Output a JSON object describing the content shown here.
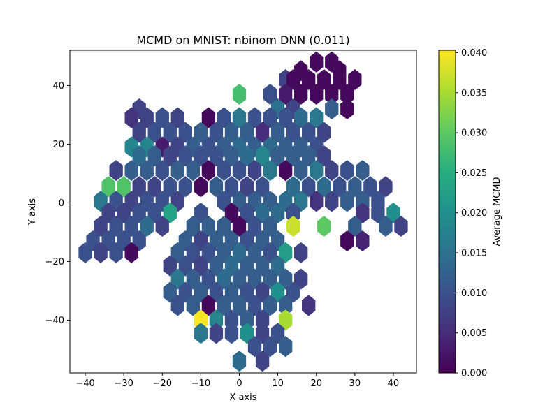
{
  "chart_data": {
    "type": "hexbin",
    "title": "MCMD on MNIST: nbinom DNN (0.011)",
    "xlabel": "X axis",
    "ylabel": "Y axis",
    "xlim": [
      -44,
      46
    ],
    "ylim": [
      -58,
      52
    ],
    "xticks": [
      -40,
      -30,
      -20,
      -10,
      0,
      10,
      20,
      30,
      40
    ],
    "yticks": [
      -40,
      -20,
      0,
      20,
      40
    ],
    "hex_spacing_x": 4.05,
    "hex_spacing_y": 5.35,
    "grid": false,
    "colormap": "viridis",
    "colorbar": {
      "label": "Average MCMD",
      "min": 0.0,
      "max": 0.0403,
      "ticks": [
        0.0,
        0.005,
        0.01,
        0.015,
        0.02,
        0.025,
        0.03,
        0.035,
        0.04
      ],
      "tick_labels": [
        "0.000",
        "0.005",
        "0.010",
        "0.015",
        "0.020",
        "0.025",
        "0.030",
        "0.035",
        "0.040"
      ]
    },
    "points": [
      {
        "x": 12,
        "y": 42,
        "v": 0.008
      },
      {
        "x": 16,
        "y": 45,
        "v": 0.001
      },
      {
        "x": 20,
        "y": 48,
        "v": 0.001
      },
      {
        "x": 24,
        "y": 48,
        "v": 0.001
      },
      {
        "x": 26,
        "y": 45,
        "v": 0.001
      },
      {
        "x": 30,
        "y": 42,
        "v": 0.001
      },
      {
        "x": 14,
        "y": 42,
        "v": 0.001
      },
      {
        "x": 18,
        "y": 42,
        "v": 0.001
      },
      {
        "x": 22,
        "y": 42,
        "v": 0.001
      },
      {
        "x": 26,
        "y": 42,
        "v": 0.001
      },
      {
        "x": 0,
        "y": 37,
        "v": 0.028
      },
      {
        "x": 8,
        "y": 37,
        "v": 0.01
      },
      {
        "x": 12,
        "y": 37,
        "v": 0.003
      },
      {
        "x": 16,
        "y": 37,
        "v": 0.001
      },
      {
        "x": 20,
        "y": 37,
        "v": 0.001
      },
      {
        "x": 24,
        "y": 37,
        "v": 0.001
      },
      {
        "x": 28,
        "y": 37,
        "v": 0.001
      },
      {
        "x": 10,
        "y": 32,
        "v": 0.015
      },
      {
        "x": 14,
        "y": 32,
        "v": 0.008
      },
      {
        "x": 24,
        "y": 32,
        "v": 0.012
      },
      {
        "x": 28,
        "y": 32,
        "v": 0.001
      },
      {
        "x": -26,
        "y": 32,
        "v": 0.008
      },
      {
        "x": -28,
        "y": 29,
        "v": 0.006
      },
      {
        "x": -24,
        "y": 29,
        "v": 0.008
      },
      {
        "x": -20,
        "y": 29,
        "v": 0.01
      },
      {
        "x": -16,
        "y": 29,
        "v": 0.008
      },
      {
        "x": -8,
        "y": 29,
        "v": 0.001
      },
      {
        "x": -4,
        "y": 29,
        "v": 0.01
      },
      {
        "x": 0,
        "y": 29,
        "v": 0.016
      },
      {
        "x": 4,
        "y": 29,
        "v": 0.01
      },
      {
        "x": 8,
        "y": 29,
        "v": 0.01
      },
      {
        "x": 12,
        "y": 29,
        "v": 0.01
      },
      {
        "x": 16,
        "y": 29,
        "v": 0.014
      },
      {
        "x": 20,
        "y": 29,
        "v": 0.016
      },
      {
        "x": -26,
        "y": 24,
        "v": 0.008
      },
      {
        "x": -22,
        "y": 24,
        "v": 0.01
      },
      {
        "x": -18,
        "y": 24,
        "v": 0.01
      },
      {
        "x": -14,
        "y": 24,
        "v": 0.01
      },
      {
        "x": -10,
        "y": 24,
        "v": 0.012
      },
      {
        "x": -6,
        "y": 24,
        "v": 0.01
      },
      {
        "x": -2,
        "y": 24,
        "v": 0.012
      },
      {
        "x": 2,
        "y": 24,
        "v": 0.012
      },
      {
        "x": 6,
        "y": 24,
        "v": 0.005
      },
      {
        "x": 10,
        "y": 24,
        "v": 0.012
      },
      {
        "x": 14,
        "y": 24,
        "v": 0.01
      },
      {
        "x": 18,
        "y": 24,
        "v": 0.01
      },
      {
        "x": 22,
        "y": 24,
        "v": 0.008
      },
      {
        "x": -28,
        "y": 19,
        "v": 0.018
      },
      {
        "x": -24,
        "y": 19,
        "v": 0.018
      },
      {
        "x": -20,
        "y": 19,
        "v": 0.003
      },
      {
        "x": -16,
        "y": 19,
        "v": 0.008
      },
      {
        "x": -12,
        "y": 19,
        "v": 0.012
      },
      {
        "x": -8,
        "y": 19,
        "v": 0.01
      },
      {
        "x": -4,
        "y": 19,
        "v": 0.012
      },
      {
        "x": 0,
        "y": 19,
        "v": 0.014
      },
      {
        "x": 4,
        "y": 19,
        "v": 0.012
      },
      {
        "x": 8,
        "y": 19,
        "v": 0.014
      },
      {
        "x": 12,
        "y": 19,
        "v": 0.012
      },
      {
        "x": 16,
        "y": 19,
        "v": 0.012
      },
      {
        "x": 20,
        "y": 19,
        "v": 0.01
      },
      {
        "x": -26,
        "y": 16,
        "v": 0.014
      },
      {
        "x": -22,
        "y": 16,
        "v": 0.012
      },
      {
        "x": -18,
        "y": 16,
        "v": 0.008
      },
      {
        "x": -14,
        "y": 16,
        "v": 0.01
      },
      {
        "x": -10,
        "y": 16,
        "v": 0.01
      },
      {
        "x": -6,
        "y": 16,
        "v": 0.01
      },
      {
        "x": -2,
        "y": 16,
        "v": 0.012
      },
      {
        "x": 2,
        "y": 16,
        "v": 0.014
      },
      {
        "x": 6,
        "y": 16,
        "v": 0.018
      },
      {
        "x": 10,
        "y": 16,
        "v": 0.012
      },
      {
        "x": 14,
        "y": 16,
        "v": 0.012
      },
      {
        "x": 18,
        "y": 16,
        "v": 0.012
      },
      {
        "x": 22,
        "y": 16,
        "v": 0.008
      },
      {
        "x": -32,
        "y": 11,
        "v": 0.008
      },
      {
        "x": -28,
        "y": 11,
        "v": 0.012
      },
      {
        "x": -24,
        "y": 11,
        "v": 0.012
      },
      {
        "x": -20,
        "y": 11,
        "v": 0.01
      },
      {
        "x": -16,
        "y": 11,
        "v": 0.012
      },
      {
        "x": -12,
        "y": 11,
        "v": 0.012
      },
      {
        "x": -8,
        "y": 11,
        "v": 0.001
      },
      {
        "x": -4,
        "y": 11,
        "v": 0.01
      },
      {
        "x": 0,
        "y": 11,
        "v": 0.01
      },
      {
        "x": 4,
        "y": 11,
        "v": 0.008
      },
      {
        "x": 8,
        "y": 11,
        "v": 0.016
      },
      {
        "x": 12,
        "y": 11,
        "v": 0.001
      },
      {
        "x": 16,
        "y": 11,
        "v": 0.012
      },
      {
        "x": 20,
        "y": 11,
        "v": 0.016
      },
      {
        "x": 24,
        "y": 11,
        "v": 0.008
      },
      {
        "x": 28,
        "y": 11,
        "v": 0.01
      },
      {
        "x": 32,
        "y": 11,
        "v": 0.012
      },
      {
        "x": -34,
        "y": 5.5,
        "v": 0.029
      },
      {
        "x": -30,
        "y": 5.5,
        "v": 0.029
      },
      {
        "x": -26,
        "y": 5.5,
        "v": 0.008
      },
      {
        "x": -22,
        "y": 5.5,
        "v": 0.008
      },
      {
        "x": -18,
        "y": 5.5,
        "v": 0.01
      },
      {
        "x": -14,
        "y": 5.5,
        "v": 0.01
      },
      {
        "x": -10,
        "y": 5.5,
        "v": 0.001
      },
      {
        "x": -6,
        "y": 5.5,
        "v": 0.012
      },
      {
        "x": -2,
        "y": 5.5,
        "v": 0.01
      },
      {
        "x": 2,
        "y": 5.5,
        "v": 0.008
      },
      {
        "x": 6,
        "y": 5.5,
        "v": 0.01
      },
      {
        "x": 14,
        "y": 5.5,
        "v": 0.014
      },
      {
        "x": 18,
        "y": 5.5,
        "v": 0.01
      },
      {
        "x": 22,
        "y": 5.5,
        "v": 0.014
      },
      {
        "x": 26,
        "y": 5.5,
        "v": 0.01
      },
      {
        "x": 30,
        "y": 5.5,
        "v": 0.012
      },
      {
        "x": 34,
        "y": 5.5,
        "v": 0.01
      },
      {
        "x": 38,
        "y": 5.5,
        "v": 0.008
      },
      {
        "x": -36,
        "y": 0.5,
        "v": 0.016
      },
      {
        "x": -32,
        "y": 0.5,
        "v": 0.01
      },
      {
        "x": -28,
        "y": 0.5,
        "v": 0.008
      },
      {
        "x": -24,
        "y": 0.5,
        "v": 0.01
      },
      {
        "x": -20,
        "y": 0.5,
        "v": 0.01
      },
      {
        "x": -16,
        "y": 0.5,
        "v": 0.008
      },
      {
        "x": -4,
        "y": 0.5,
        "v": 0.01
      },
      {
        "x": 0,
        "y": 0.5,
        "v": 0.012
      },
      {
        "x": 4,
        "y": 0.5,
        "v": 0.012
      },
      {
        "x": 8,
        "y": 0.5,
        "v": 0.012
      },
      {
        "x": 12,
        "y": 0.5,
        "v": 0.014
      },
      {
        "x": 16,
        "y": 0.5,
        "v": 0.016
      },
      {
        "x": 20,
        "y": 0.5,
        "v": 0.006
      },
      {
        "x": 24,
        "y": 0.5,
        "v": 0.008
      },
      {
        "x": 28,
        "y": 0.5,
        "v": 0.012
      },
      {
        "x": 32,
        "y": 0.5,
        "v": 0.012
      },
      {
        "x": 36,
        "y": 0.5,
        "v": 0.01
      },
      {
        "x": -34,
        "y": -3.5,
        "v": 0.008
      },
      {
        "x": -30,
        "y": -3.5,
        "v": 0.008
      },
      {
        "x": -26,
        "y": -3.5,
        "v": 0.01
      },
      {
        "x": -22,
        "y": -3.5,
        "v": 0.01
      },
      {
        "x": -18,
        "y": -3.5,
        "v": 0.023
      },
      {
        "x": -10,
        "y": -3.5,
        "v": 0.01
      },
      {
        "x": -2,
        "y": -3.5,
        "v": 0.001
      },
      {
        "x": 2,
        "y": -3.5,
        "v": 0.01
      },
      {
        "x": 6,
        "y": -3.5,
        "v": 0.014
      },
      {
        "x": 10,
        "y": -3.5,
        "v": 0.014
      },
      {
        "x": 14,
        "y": -3.5,
        "v": 0.01
      },
      {
        "x": 32,
        "y": -3.5,
        "v": 0.006
      },
      {
        "x": 36,
        "y": -3.5,
        "v": 0.01
      },
      {
        "x": 40,
        "y": -3.5,
        "v": 0.02
      },
      {
        "x": -36,
        "y": -8,
        "v": 0.008
      },
      {
        "x": -32,
        "y": -8,
        "v": 0.01
      },
      {
        "x": -28,
        "y": -8,
        "v": 0.01
      },
      {
        "x": -24,
        "y": -8,
        "v": 0.014
      },
      {
        "x": -20,
        "y": -8,
        "v": 0.008
      },
      {
        "x": -12,
        "y": -8,
        "v": 0.012
      },
      {
        "x": -8,
        "y": -8,
        "v": 0.012
      },
      {
        "x": -4,
        "y": -8,
        "v": 0.012
      },
      {
        "x": 0,
        "y": -8,
        "v": 0.001
      },
      {
        "x": 4,
        "y": -8,
        "v": 0.01
      },
      {
        "x": 8,
        "y": -8,
        "v": 0.012
      },
      {
        "x": 14,
        "y": -8,
        "v": 0.037
      },
      {
        "x": 22,
        "y": -8,
        "v": 0.03
      },
      {
        "x": 30,
        "y": -8,
        "v": 0.012
      },
      {
        "x": 38,
        "y": -8,
        "v": 0.012
      },
      {
        "x": 42,
        "y": -8,
        "v": 0.008
      },
      {
        "x": -38,
        "y": -13,
        "v": 0.01
      },
      {
        "x": -34,
        "y": -13,
        "v": 0.01
      },
      {
        "x": -30,
        "y": -13,
        "v": 0.01
      },
      {
        "x": -26,
        "y": -13,
        "v": 0.01
      },
      {
        "x": -14,
        "y": -13,
        "v": 0.012
      },
      {
        "x": -10,
        "y": -13,
        "v": 0.008
      },
      {
        "x": -6,
        "y": -13,
        "v": 0.012
      },
      {
        "x": -2,
        "y": -13,
        "v": 0.012
      },
      {
        "x": 2,
        "y": -13,
        "v": 0.01
      },
      {
        "x": 6,
        "y": -13,
        "v": 0.012
      },
      {
        "x": 10,
        "y": -13,
        "v": 0.012
      },
      {
        "x": 28,
        "y": -13,
        "v": 0.001
      },
      {
        "x": 32,
        "y": -13,
        "v": 0.004
      },
      {
        "x": -40,
        "y": -17,
        "v": 0.01
      },
      {
        "x": -36,
        "y": -17,
        "v": 0.008
      },
      {
        "x": -32,
        "y": -17,
        "v": 0.01
      },
      {
        "x": -28,
        "y": -17,
        "v": 0.001
      },
      {
        "x": -16,
        "y": -17,
        "v": 0.012
      },
      {
        "x": -12,
        "y": -17,
        "v": 0.01
      },
      {
        "x": -8,
        "y": -17,
        "v": 0.01
      },
      {
        "x": -4,
        "y": -17,
        "v": 0.012
      },
      {
        "x": 0,
        "y": -17,
        "v": 0.014
      },
      {
        "x": 4,
        "y": -17,
        "v": 0.012
      },
      {
        "x": 8,
        "y": -17,
        "v": 0.01
      },
      {
        "x": 12,
        "y": -17,
        "v": 0.022
      },
      {
        "x": 16,
        "y": -17,
        "v": 0.008
      },
      {
        "x": -18,
        "y": -21.5,
        "v": 0.008
      },
      {
        "x": -14,
        "y": -21.5,
        "v": 0.01
      },
      {
        "x": -10,
        "y": -21.5,
        "v": 0.008
      },
      {
        "x": -6,
        "y": -21.5,
        "v": 0.012
      },
      {
        "x": -2,
        "y": -21.5,
        "v": 0.014
      },
      {
        "x": 2,
        "y": -21.5,
        "v": 0.012
      },
      {
        "x": 6,
        "y": -21.5,
        "v": 0.012
      },
      {
        "x": 10,
        "y": -21.5,
        "v": 0.014
      },
      {
        "x": -16,
        "y": -26,
        "v": 0.016
      },
      {
        "x": -12,
        "y": -26,
        "v": 0.012
      },
      {
        "x": -8,
        "y": -26,
        "v": 0.01
      },
      {
        "x": -4,
        "y": -26,
        "v": 0.014
      },
      {
        "x": 0,
        "y": -26,
        "v": 0.012
      },
      {
        "x": 4,
        "y": -26,
        "v": 0.012
      },
      {
        "x": 8,
        "y": -26,
        "v": 0.012
      },
      {
        "x": 12,
        "y": -26,
        "v": 0.012
      },
      {
        "x": 16,
        "y": -26,
        "v": 0.008
      },
      {
        "x": -18,
        "y": -30.5,
        "v": 0.012
      },
      {
        "x": -14,
        "y": -30.5,
        "v": 0.01
      },
      {
        "x": -10,
        "y": -30.5,
        "v": 0.012
      },
      {
        "x": -6,
        "y": -30.5,
        "v": 0.01
      },
      {
        "x": -2,
        "y": -30.5,
        "v": 0.012
      },
      {
        "x": 2,
        "y": -30.5,
        "v": 0.01
      },
      {
        "x": 6,
        "y": -30.5,
        "v": 0.008
      },
      {
        "x": 10,
        "y": -30.5,
        "v": 0.02
      },
      {
        "x": 14,
        "y": -30.5,
        "v": 0.01
      },
      {
        "x": -16,
        "y": -35,
        "v": 0.01
      },
      {
        "x": -12,
        "y": -35,
        "v": 0.012
      },
      {
        "x": -8,
        "y": -35,
        "v": 0.001
      },
      {
        "x": -4,
        "y": -35,
        "v": 0.012
      },
      {
        "x": 0,
        "y": -35,
        "v": 0.012
      },
      {
        "x": 4,
        "y": -35,
        "v": 0.01
      },
      {
        "x": 8,
        "y": -35,
        "v": 0.012
      },
      {
        "x": 12,
        "y": -35,
        "v": 0.012
      },
      {
        "x": 18,
        "y": -35,
        "v": 0.006
      },
      {
        "x": -10,
        "y": -40,
        "v": 0.04
      },
      {
        "x": -6,
        "y": -40,
        "v": 0.018
      },
      {
        "x": -2,
        "y": -40,
        "v": 0.01
      },
      {
        "x": 2,
        "y": -40,
        "v": 0.012
      },
      {
        "x": 6,
        "y": -40,
        "v": 0.008
      },
      {
        "x": 12,
        "y": -40,
        "v": 0.035
      },
      {
        "x": -10,
        "y": -44.5,
        "v": 0.016
      },
      {
        "x": -6,
        "y": -44.5,
        "v": 0.008
      },
      {
        "x": -2,
        "y": -44.5,
        "v": 0.01
      },
      {
        "x": 2,
        "y": -44.5,
        "v": 0.02
      },
      {
        "x": 6,
        "y": -44.5,
        "v": 0.008
      },
      {
        "x": 10,
        "y": -44.5,
        "v": 0.01
      },
      {
        "x": 4,
        "y": -49,
        "v": 0.01
      },
      {
        "x": 8,
        "y": -49,
        "v": 0.01
      },
      {
        "x": 12,
        "y": -49,
        "v": 0.012
      },
      {
        "x": 0,
        "y": -54,
        "v": 0.014
      },
      {
        "x": 6,
        "y": -54,
        "v": 0.008
      }
    ]
  }
}
